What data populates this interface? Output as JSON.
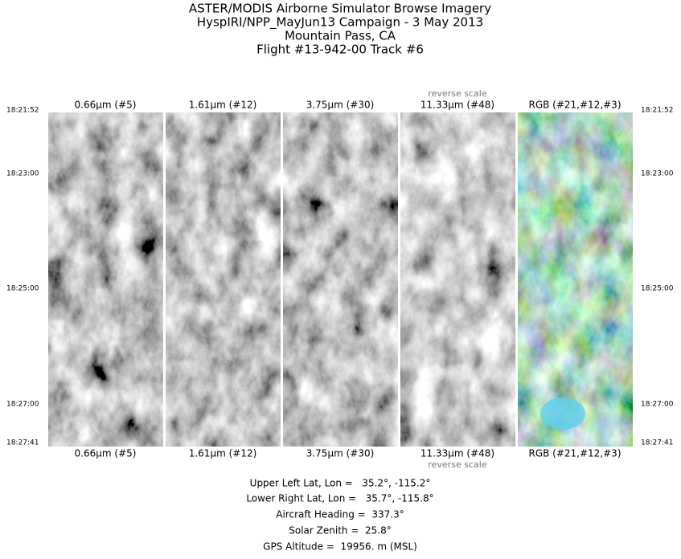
{
  "header": {
    "lines": [
      "ASTER/MODIS Airborne Simulator Browse Imagery",
      "HyspIRI/NPP_MayJun13 Campaign - 3 May 2013",
      "Mountain Pass, CA",
      "Flight #13-942-00 Track #6"
    ]
  },
  "panels": [
    {
      "label": "0.66µm (#5)"
    },
    {
      "label": "1.61µm (#12)"
    },
    {
      "label": "3.75µm (#30)"
    },
    {
      "label": "11.33µm (#48)",
      "note": "reverse scale"
    },
    {
      "label": "RGB (#21,#12,#3)"
    }
  ],
  "times": [
    "18:21:52",
    "18:23:00",
    "18:25:00",
    "18:27:00",
    "18:27:41"
  ],
  "footer": {
    "lines": [
      "Upper Left Lat, Lon =   35.2°, -115.2°",
      "Lower Right Lat, Lon =   35.7°, -115.8°",
      "Aircraft Heading =  337.3°",
      "Solar Zenith =  25.8°",
      "GPS Altitude =  19956. m (MSL)"
    ]
  }
}
